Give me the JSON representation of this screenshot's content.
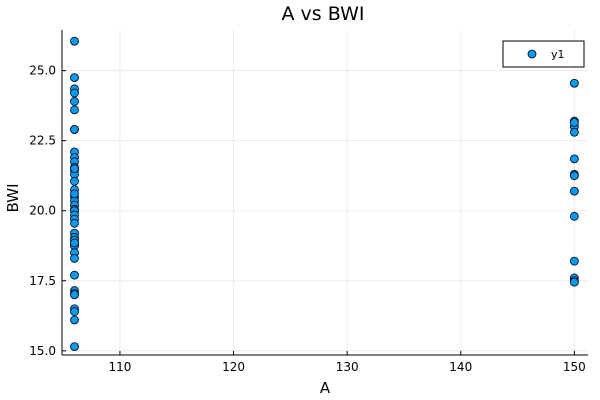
{
  "chart_data": {
    "type": "scatter",
    "title": "A vs BWI",
    "xlabel": "A",
    "ylabel": "BWI",
    "xlim": [
      104.9,
      151.2
    ],
    "ylim": [
      14.85,
      26.45
    ],
    "xticks": [
      110,
      120,
      130,
      140,
      150
    ],
    "yticks": [
      15.0,
      17.5,
      20.0,
      22.5,
      25.0
    ],
    "xtick_labels": [
      "110",
      "120",
      "130",
      "140",
      "150"
    ],
    "ytick_labels": [
      "15.0",
      "17.5",
      "20.0",
      "22.5",
      "25.0"
    ],
    "grid": true,
    "legend_position": "top-right",
    "color": "#009AF9",
    "series": [
      {
        "name": "y1",
        "x": [
          106,
          106,
          106,
          106,
          106,
          106,
          106,
          106,
          106,
          106,
          106,
          106,
          106,
          106,
          106,
          106,
          106,
          106,
          106,
          106,
          106,
          106,
          106,
          106,
          106,
          106,
          106,
          106,
          106,
          106,
          106,
          106,
          106,
          106,
          106,
          106,
          106,
          106,
          106,
          106,
          106,
          106,
          150,
          150,
          150,
          150,
          150,
          150,
          150,
          150,
          150,
          150,
          150,
          150,
          150,
          150
        ],
        "y": [
          26.05,
          24.75,
          24.35,
          24.2,
          23.9,
          23.6,
          22.9,
          22.9,
          22.1,
          21.9,
          21.75,
          21.55,
          21.45,
          21.3,
          21.05,
          20.75,
          20.5,
          20.35,
          20.2,
          20.05,
          20.0,
          19.85,
          19.7,
          19.2,
          19.05,
          18.95,
          18.8,
          18.75,
          18.5,
          18.3,
          17.7,
          17.15,
          17.05,
          17.0,
          16.5,
          16.4,
          16.1,
          15.15,
          21.5,
          20.6,
          18.85,
          19.55,
          24.55,
          23.2,
          23.0,
          22.8,
          21.85,
          21.3,
          21.25,
          20.7,
          19.8,
          18.2,
          17.6,
          17.5,
          17.45,
          23.15
        ]
      }
    ]
  }
}
